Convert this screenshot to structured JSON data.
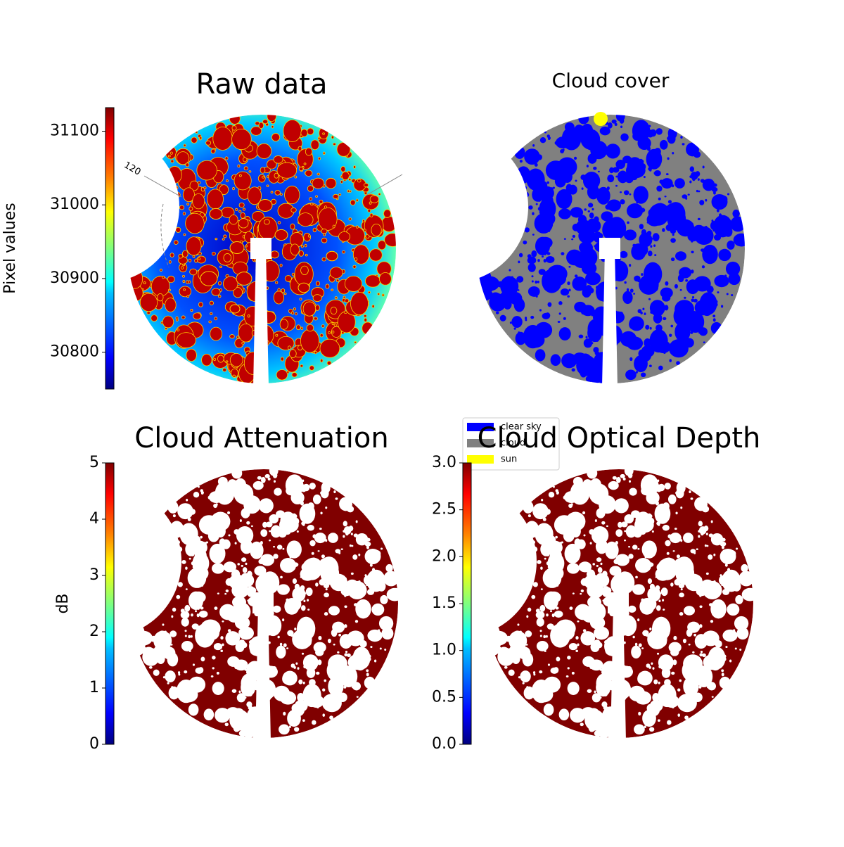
{
  "chart_data": [
    {
      "type": "image",
      "title": "Raw data",
      "ylabel": "Pixel values",
      "colormap": "jet",
      "ylim": [
        30750,
        31132
      ],
      "yticks": [
        30800,
        30900,
        31000,
        31100
      ],
      "annotation": "120"
    },
    {
      "type": "image",
      "title": "Cloud cover",
      "series": [
        {
          "name": "clear sky",
          "color": "#0000ff"
        },
        {
          "name": "cloud",
          "color": "#808080"
        },
        {
          "name": "sun",
          "color": "#ffff00"
        }
      ]
    },
    {
      "type": "image",
      "title": "Cloud Attenuation",
      "ylabel": "dB",
      "colormap": "jet",
      "ylim": [
        0,
        5
      ],
      "yticks": [
        0,
        1,
        2,
        3,
        4,
        5
      ]
    },
    {
      "type": "image",
      "title": "Cloud Optical Depth",
      "colormap": "jet",
      "ylim": [
        0,
        3
      ],
      "yticks": [
        {
          "value": 0,
          "label": "0.0"
        },
        {
          "value": 0.5,
          "label": "0.5"
        },
        {
          "value": 1,
          "label": "1.0"
        },
        {
          "value": 1.5,
          "label": "1.5"
        },
        {
          "value": 2,
          "label": "2.0"
        },
        {
          "value": 2.5,
          "label": "2.5"
        },
        {
          "value": 3,
          "label": "3.0"
        }
      ]
    }
  ]
}
